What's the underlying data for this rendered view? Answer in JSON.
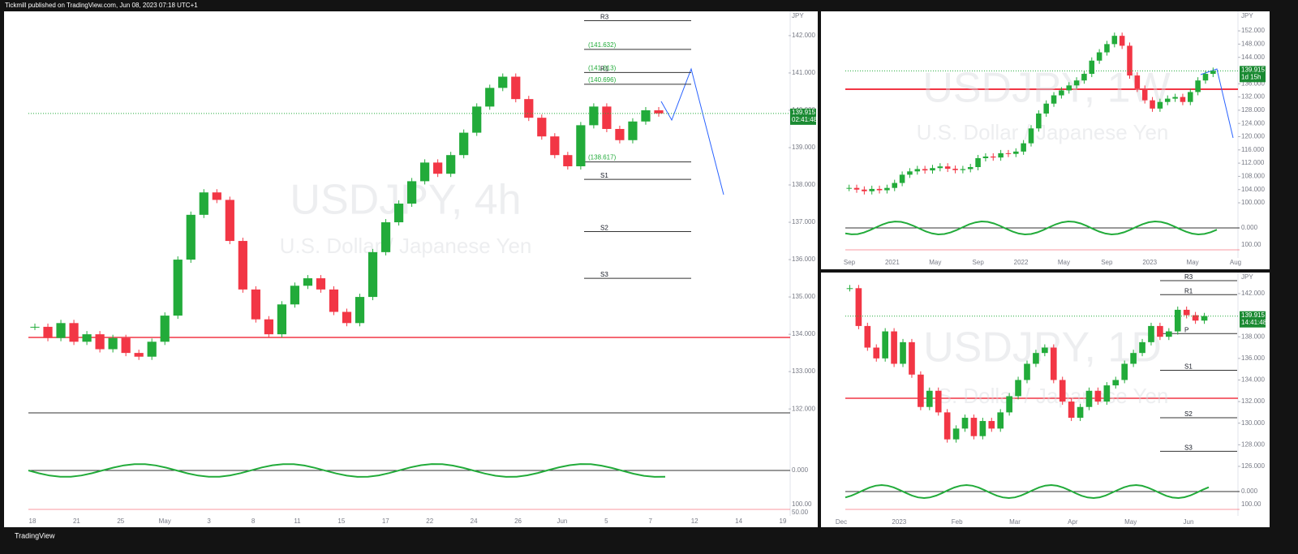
{
  "header": {
    "text": "Tickmill published on TradingView.com, Jun 08, 2023 07:18 UTC+1"
  },
  "footer": {
    "brand": "TradingView"
  },
  "panels": [
    {
      "symbol": "USDJPY, 4h",
      "description": "U.S. Dollar / Japanese Yen",
      "currency": "JPY",
      "ylim": [
        131.33,
        142.65
      ],
      "yticks": [
        {
          "value": 132,
          "label": "132.000"
        },
        {
          "value": 133,
          "label": "133.000"
        },
        {
          "value": 134,
          "label": "134.000"
        },
        {
          "value": 135,
          "label": "135.000"
        },
        {
          "value": 136,
          "label": "136.000"
        },
        {
          "value": 137,
          "label": "137.000"
        },
        {
          "value": 138,
          "label": "138.000"
        },
        {
          "value": 139,
          "label": "139.000"
        },
        {
          "value": 140,
          "label": "140.000"
        },
        {
          "value": 141,
          "label": "141.000"
        },
        {
          "value": 142,
          "label": "142.000"
        }
      ],
      "xlabels": [
        "18",
        "21",
        "25",
        "May",
        "3",
        "8",
        "11",
        "15",
        "17",
        "22",
        "24",
        "26",
        "Jun",
        "5",
        "7",
        "12",
        "14",
        "19"
      ],
      "last_price": {
        "value": 139.915,
        "label": "139.915"
      },
      "countdown": "02:41:48",
      "pivots": [
        {
          "label": "R3",
          "value": 142.4
        },
        {
          "text": "(141.632)",
          "value": 141.632
        },
        {
          "label": "R1",
          "text": "(141.013)",
          "value": 141.013
        },
        {
          "text": "(140.696)",
          "value": 140.696
        },
        {
          "text": "(138.617)",
          "value": 138.617
        },
        {
          "label": "S1",
          "value": 138.15
        },
        {
          "label": "S2",
          "value": 136.75
        },
        {
          "label": "S3",
          "value": 135.5
        }
      ],
      "close": [
        134.2,
        133.9,
        134.3,
        133.8,
        134.0,
        133.6,
        133.9,
        133.5,
        133.4,
        133.8,
        134.5,
        136.0,
        137.2,
        137.8,
        137.6,
        136.5,
        135.2,
        134.4,
        134.0,
        134.8,
        135.3,
        135.5,
        135.2,
        134.6,
        134.3,
        135.0,
        136.2,
        137.0,
        137.5,
        138.1,
        138.6,
        138.3,
        138.8,
        139.4,
        140.1,
        140.6,
        140.9,
        140.3,
        139.8,
        139.3,
        138.8,
        138.5,
        139.6,
        140.1,
        139.5,
        139.2,
        139.7,
        140.0,
        139.915
      ],
      "indicator_labels": [
        "0.000",
        "100.00",
        "50.00"
      ]
    },
    {
      "symbol": "USDJPY, 1W",
      "description": "U.S. Dollar / Japanese Yen",
      "currency": "JPY",
      "ylim": [
        97.8,
        157.9
      ],
      "yticks": [
        {
          "value": 100,
          "label": "100.000"
        },
        {
          "value": 104,
          "label": "104.000"
        },
        {
          "value": 108,
          "label": "108.000"
        },
        {
          "value": 112,
          "label": "112.000"
        },
        {
          "value": 116,
          "label": "116.000"
        },
        {
          "value": 120,
          "label": "120.000"
        },
        {
          "value": 124,
          "label": "124.000"
        },
        {
          "value": 128,
          "label": "128.000"
        },
        {
          "value": 132,
          "label": "132.000"
        },
        {
          "value": 136,
          "label": "136.000"
        },
        {
          "value": 144,
          "label": "144.000"
        },
        {
          "value": 148,
          "label": "148.000"
        },
        {
          "value": 152,
          "label": "152.000"
        }
      ],
      "xlabels": [
        "Sep",
        "2021",
        "May",
        "Sep",
        "2022",
        "May",
        "Sep",
        "2023",
        "May",
        "Aug"
      ],
      "last_price": {
        "value": 139.915,
        "label": "139.915"
      },
      "countdown": "1d 15h",
      "pivots": [],
      "close": [
        104.5,
        104.0,
        103.5,
        104.2,
        103.8,
        104.5,
        106.0,
        108.5,
        109.5,
        110.2,
        109.8,
        110.5,
        111.0,
        110.3,
        109.9,
        110.2,
        110.8,
        113.5,
        114.0,
        113.7,
        115.0,
        114.8,
        115.5,
        118.0,
        122.5,
        127.0,
        130.0,
        132.5,
        134.0,
        135.5,
        137.0,
        139.0,
        143.0,
        145.5,
        148.0,
        150.5,
        147.5,
        138.5,
        134.5,
        131.0,
        128.5,
        130.5,
        131.5,
        132.0,
        130.5,
        133.5,
        137.0,
        139.0,
        139.915
      ],
      "indicator_labels": [
        "0.000",
        "100.00"
      ]
    },
    {
      "symbol": "USDJPY, 1D",
      "description": "U.S. Dollar / Japanese Yen",
      "currency": "JPY",
      "ylim": [
        124.87,
        143.95
      ],
      "yticks": [
        {
          "value": 126,
          "label": "126.000"
        },
        {
          "value": 128,
          "label": "128.000"
        },
        {
          "value": 130,
          "label": "130.000"
        },
        {
          "value": 132,
          "label": "132.000"
        },
        {
          "value": 134,
          "label": "134.000"
        },
        {
          "value": 136,
          "label": "136.000"
        },
        {
          "value": 138,
          "label": "138.000"
        },
        {
          "value": 142,
          "label": "142.000"
        }
      ],
      "xlabels": [
        "Dec",
        "2023",
        "Feb",
        "Mar",
        "Apr",
        "May",
        "Jun"
      ],
      "last_price": {
        "value": 139.915,
        "label": "139.915"
      },
      "countdown": "14:41:48",
      "pivots": [
        {
          "label": "R3",
          "value": 143.2
        },
        {
          "label": "R1",
          "value": 141.9
        },
        {
          "label": "P",
          "value": 138.3
        },
        {
          "label": "S1",
          "value": 134.9
        },
        {
          "label": "S2",
          "value": 130.5
        },
        {
          "label": "S3",
          "value": 127.4
        }
      ],
      "close": [
        142.5,
        139.0,
        137.0,
        136.0,
        138.5,
        135.5,
        137.5,
        134.5,
        131.5,
        133.0,
        131.0,
        128.5,
        129.5,
        130.5,
        128.8,
        130.2,
        129.5,
        131.0,
        132.5,
        134.0,
        135.5,
        136.5,
        137.0,
        134.0,
        132.0,
        130.5,
        131.5,
        133.0,
        132.0,
        133.5,
        134.0,
        135.5,
        136.5,
        137.5,
        139.0,
        138.0,
        138.5,
        140.5,
        140.0,
        139.5,
        139.915
      ],
      "indicator_labels": [
        "0.000",
        "100.00"
      ]
    }
  ]
}
